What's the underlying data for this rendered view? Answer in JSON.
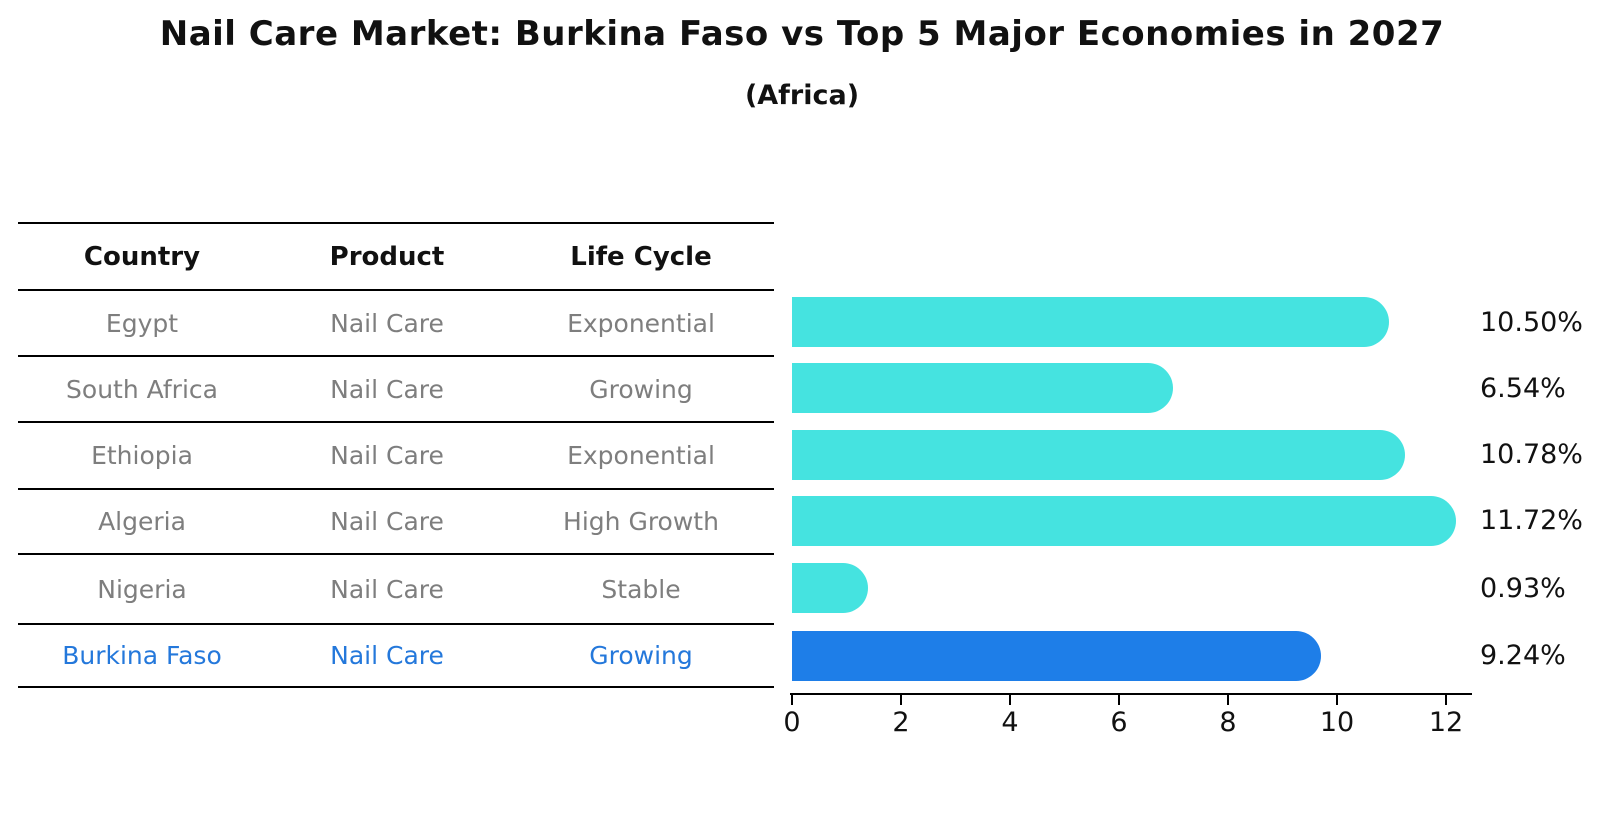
{
  "title": "Nail Care Market: Burkina Faso vs Top 5 Major Economies in 2027",
  "subtitle": "(Africa)",
  "table": {
    "headers": [
      "Country",
      "Product",
      "Life Cycle"
    ],
    "rows": [
      {
        "country": "Egypt",
        "product": "Nail Care",
        "life_cycle": "Exponential"
      },
      {
        "country": "South Africa",
        "product": "Nail Care",
        "life_cycle": "Growing"
      },
      {
        "country": "Ethiopia",
        "product": "Nail Care",
        "life_cycle": "Exponential"
      },
      {
        "country": "Algeria",
        "product": "Nail Care",
        "life_cycle": "High Growth"
      },
      {
        "country": "Nigeria",
        "product": "Nail Care",
        "life_cycle": "Stable"
      },
      {
        "country": "Burkina Faso",
        "product": "Nail Care",
        "life_cycle": "Growing"
      }
    ]
  },
  "chart_data": {
    "type": "bar",
    "orientation": "horizontal",
    "title": "Nail Care Market: Burkina Faso vs Top 5 Major Economies in 2027",
    "subtitle": "(Africa)",
    "categories": [
      "Egypt",
      "South Africa",
      "Ethiopia",
      "Algeria",
      "Nigeria",
      "Burkina Faso"
    ],
    "values": [
      10.5,
      6.54,
      10.78,
      11.72,
      0.93,
      9.24
    ],
    "value_labels": [
      "10.50%",
      "6.54%",
      "10.78%",
      "11.72%",
      "0.93%",
      "9.24%"
    ],
    "x_ticks": [
      "0",
      "2",
      "4",
      "6",
      "8",
      "10",
      "12"
    ],
    "xlim": [
      0,
      12.5
    ],
    "xlabel": "",
    "ylabel": "",
    "grid": false,
    "legend": false,
    "bar_color": "#45E3E0",
    "highlight_color": "#1E7EE8",
    "highlight_text_color": "#2478DB",
    "highlight_index": 5,
    "highlight_style": "dotted-edge"
  }
}
